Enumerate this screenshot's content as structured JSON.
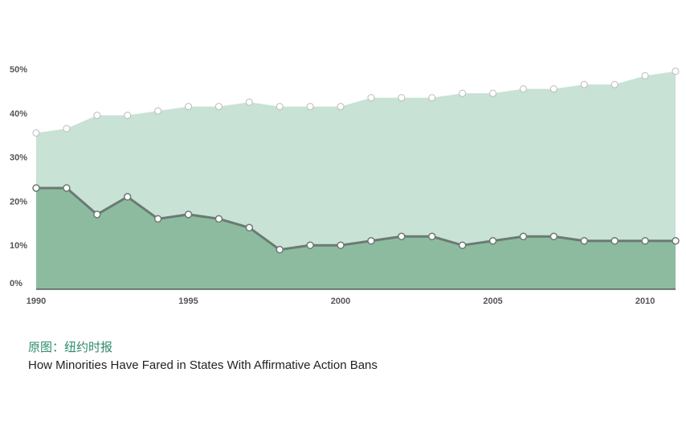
{
  "source_label": "原图：纽约时报",
  "caption": "How Minorities Have Fared in States With Affirmative Action Bans",
  "colors": {
    "upper_area": "#c8e2d5",
    "lower_area": "#8dbb9f",
    "line": "#6b7a72",
    "marker_fill": "#ffffff",
    "marker_stroke": "#888888",
    "axis": "#222222",
    "tick_text": "#555555"
  },
  "chart_data": {
    "type": "area",
    "title": "",
    "xlabel": "",
    "ylabel": "",
    "x": [
      1990,
      1991,
      1992,
      1993,
      1994,
      1995,
      1996,
      1997,
      1998,
      1999,
      2000,
      2001,
      2002,
      2003,
      2004,
      2005,
      2006,
      2007,
      2008,
      2009,
      2010,
      2011
    ],
    "series": [
      {
        "values": [
          35.5,
          36.5,
          39.5,
          39.5,
          40.5,
          41.5,
          41.5,
          42.5,
          41.5,
          41.5,
          41.5,
          43.5,
          43.5,
          43.5,
          44.5,
          44.5,
          45.5,
          45.5,
          46.5,
          46.5,
          48.5,
          49.5
        ]
      },
      {
        "values": [
          23,
          23,
          17,
          21,
          16,
          17,
          16,
          14,
          9,
          10,
          10,
          11,
          12,
          12,
          10,
          11,
          12,
          12,
          11,
          11,
          11,
          11
        ]
      }
    ],
    "xticks": [
      {
        "value": 1990,
        "label": "1990"
      },
      {
        "value": 1995,
        "label": "1995"
      },
      {
        "value": 2000,
        "label": "2000"
      },
      {
        "value": 2005,
        "label": "2005"
      },
      {
        "value": 2010,
        "label": "2010"
      }
    ],
    "yticks": [
      {
        "value": 0,
        "label": "0%"
      },
      {
        "value": 10,
        "label": "10%"
      },
      {
        "value": 20,
        "label": "20%"
      },
      {
        "value": 30,
        "label": "30%"
      },
      {
        "value": 40,
        "label": "40%"
      },
      {
        "value": 50,
        "label": "50%"
      }
    ],
    "xlim": [
      1990,
      2011
    ],
    "ylim": [
      0,
      50
    ],
    "grid": false
  }
}
